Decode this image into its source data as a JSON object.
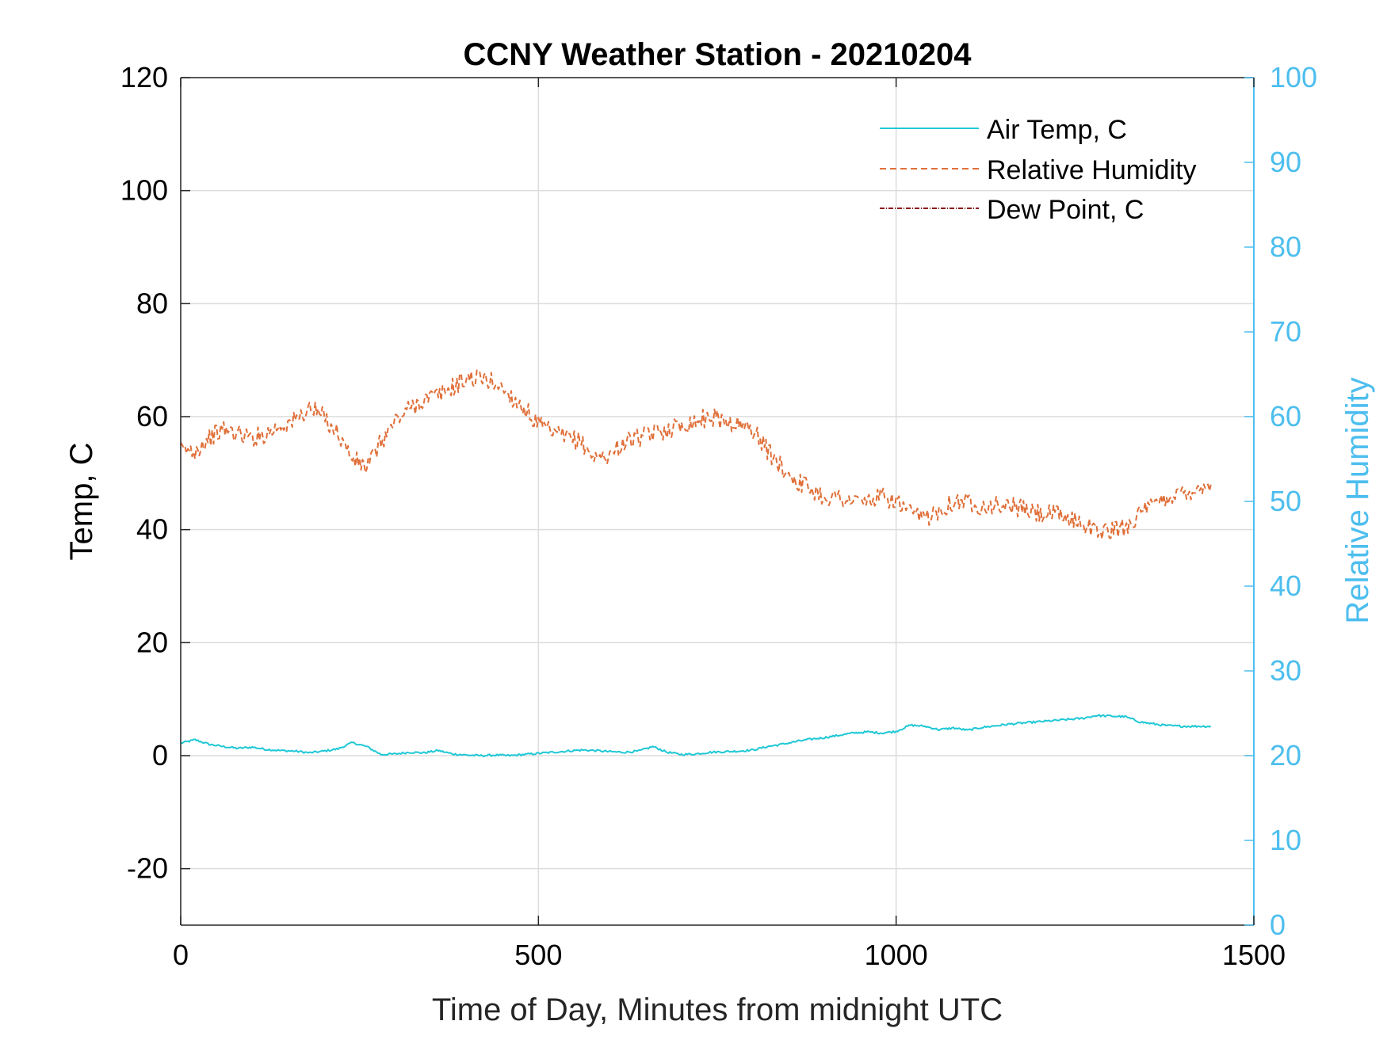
{
  "chart_data": {
    "type": "line",
    "title": "CCNY Weather Station - 20210204",
    "xlabel": "Time of Day, Minutes from midnight UTC",
    "ylabel_left": "Temp, C",
    "ylabel_right": "Relative Humidity",
    "xlim": [
      0,
      1500
    ],
    "ylim_left": [
      -30,
      120
    ],
    "ylim_right": [
      0,
      100
    ],
    "x_ticks": [
      "0",
      "500",
      "1000",
      "1500"
    ],
    "y_left_ticks": [
      "-20",
      "0",
      "20",
      "40",
      "60",
      "80",
      "100",
      "120"
    ],
    "y_right_ticks": [
      "0",
      "10",
      "20",
      "30",
      "40",
      "50",
      "60",
      "70",
      "80",
      "90",
      "100"
    ],
    "grid": true,
    "legend_position": "top-right",
    "colors": {
      "air_temp": "#1fc8d6",
      "relative_humidity": "#e0703a",
      "dew_point": "#8b0a1a",
      "right_axis": "#4dbeee"
    },
    "series": [
      {
        "name": "Air Temp, C",
        "axis": "left",
        "style": "solid",
        "x": [
          0,
          20,
          40,
          60,
          80,
          100,
          120,
          140,
          160,
          180,
          200,
          220,
          240,
          260,
          280,
          300,
          320,
          340,
          360,
          380,
          400,
          420,
          440,
          460,
          480,
          500,
          520,
          540,
          560,
          580,
          600,
          620,
          640,
          660,
          680,
          700,
          720,
          740,
          760,
          780,
          800,
          820,
          840,
          860,
          880,
          900,
          920,
          940,
          960,
          980,
          1000,
          1020,
          1040,
          1060,
          1080,
          1100,
          1120,
          1140,
          1160,
          1180,
          1200,
          1220,
          1240,
          1260,
          1280,
          1300,
          1320,
          1340,
          1360,
          1380,
          1400,
          1420,
          1440
        ],
        "values": [
          2.2,
          2.8,
          2.0,
          1.6,
          1.3,
          1.5,
          1.1,
          0.9,
          0.8,
          0.5,
          0.8,
          1.2,
          2.3,
          1.6,
          0.2,
          0.3,
          0.6,
          0.5,
          0.9,
          0.3,
          0.1,
          0.0,
          0.1,
          0.0,
          0.2,
          0.4,
          0.6,
          0.8,
          1.0,
          0.9,
          0.7,
          0.6,
          0.8,
          1.6,
          0.6,
          0.2,
          0.3,
          0.6,
          0.7,
          0.8,
          1.0,
          1.6,
          2.0,
          2.5,
          2.9,
          3.2,
          3.6,
          4.0,
          4.2,
          4.0,
          4.3,
          5.4,
          5.2,
          4.6,
          4.9,
          4.5,
          5.0,
          5.3,
          5.6,
          5.8,
          6.0,
          6.2,
          6.4,
          6.6,
          7.1,
          7.0,
          6.9,
          6.0,
          5.6,
          5.3,
          5.2,
          5.2,
          5.2
        ]
      },
      {
        "name": "Relative Humidity",
        "axis": "right",
        "style": "dashed",
        "x": [
          0,
          20,
          40,
          60,
          80,
          100,
          120,
          140,
          160,
          180,
          200,
          220,
          240,
          260,
          280,
          300,
          320,
          340,
          360,
          380,
          400,
          420,
          440,
          460,
          480,
          500,
          520,
          540,
          560,
          580,
          600,
          620,
          640,
          660,
          680,
          700,
          720,
          740,
          760,
          780,
          800,
          820,
          840,
          860,
          880,
          900,
          920,
          940,
          960,
          980,
          1000,
          1020,
          1040,
          1060,
          1080,
          1100,
          1120,
          1140,
          1160,
          1180,
          1200,
          1220,
          1240,
          1260,
          1280,
          1300,
          1320,
          1340,
          1360,
          1380,
          1400,
          1420,
          1440
        ],
        "values": [
          56,
          56,
          57.5,
          58.5,
          58,
          57.5,
          58,
          59,
          59.5,
          61,
          60,
          58,
          55,
          54,
          57,
          59.5,
          61,
          62,
          62.5,
          63.5,
          64.5,
          64.5,
          64,
          62.5,
          61,
          59,
          58,
          57.5,
          57,
          55,
          55.5,
          57,
          57.5,
          58,
          58.5,
          59,
          59.5,
          60,
          59.5,
          59,
          58.5,
          56,
          54,
          52.5,
          51.5,
          50.5,
          50.5,
          50,
          50,
          50.5,
          50,
          48.5,
          48,
          49,
          50,
          50,
          49.5,
          49.5,
          49.5,
          49,
          48.5,
          48.5,
          48,
          47.5,
          46.5,
          46.5,
          47,
          48.5,
          49.5,
          50.5,
          51,
          51.5,
          52
        ]
      },
      {
        "name": "Dew Point, C",
        "axis": "left",
        "style": "dash-dot",
        "x": [],
        "values": []
      }
    ]
  }
}
